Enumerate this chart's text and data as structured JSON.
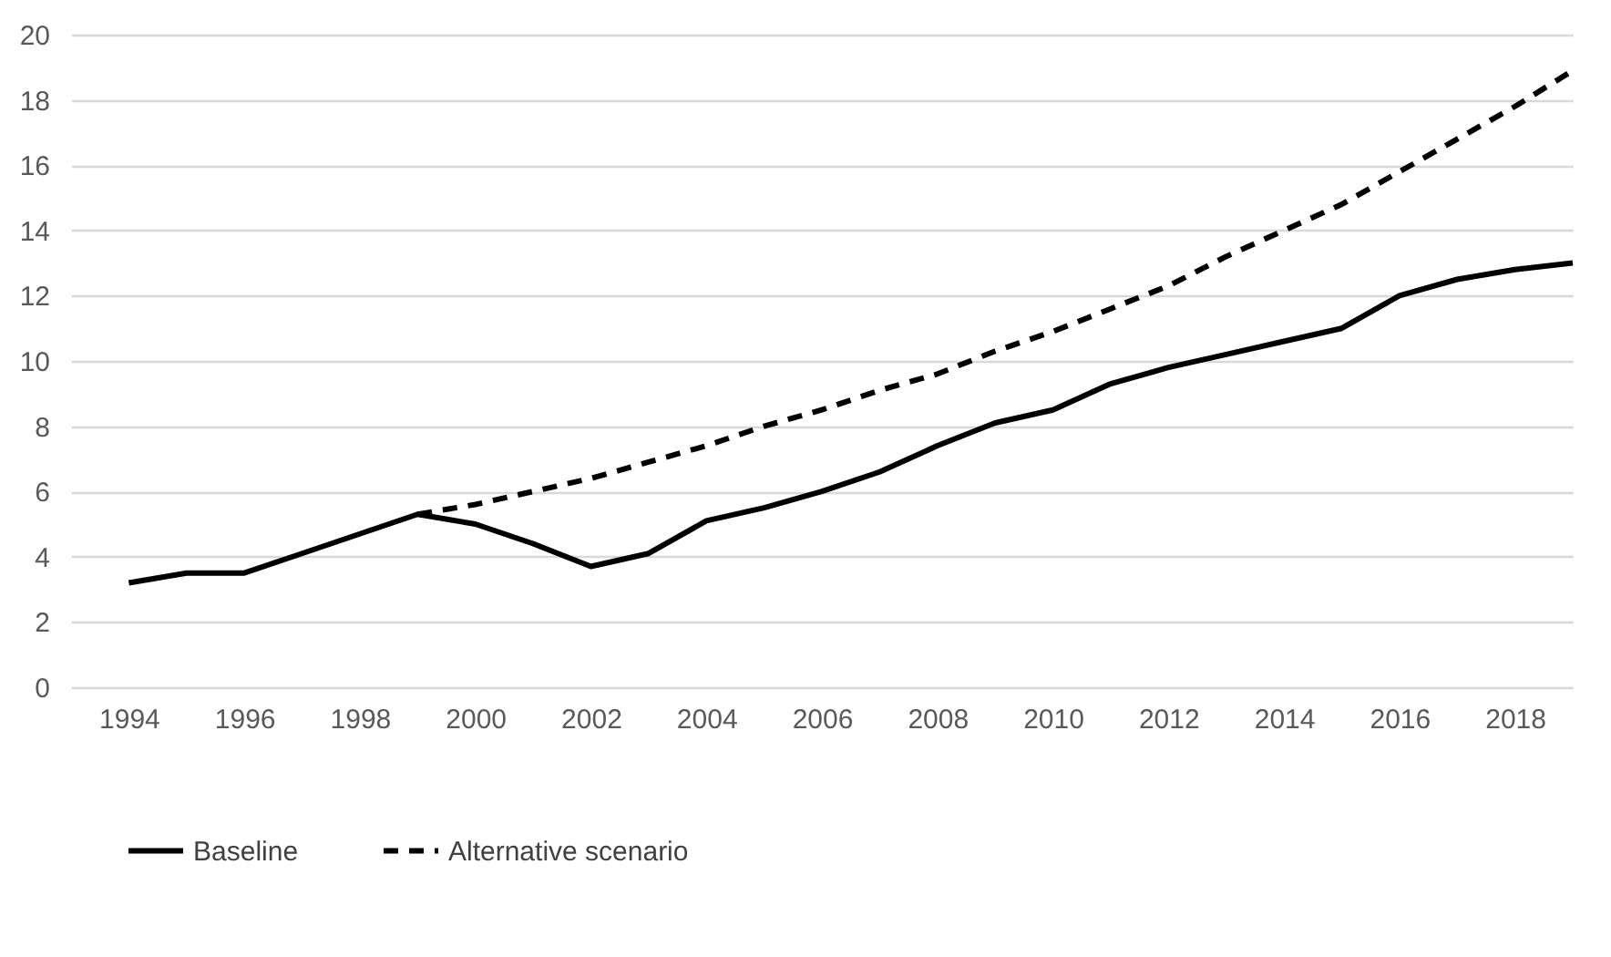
{
  "chart_data": {
    "type": "line",
    "xlim": [
      1993,
      2019
    ],
    "xticks": [
      1994,
      1996,
      1998,
      2000,
      2002,
      2004,
      2006,
      2008,
      2010,
      2012,
      2014,
      2016,
      2018
    ],
    "ylim": [
      0,
      20
    ],
    "yticks": [
      0,
      2,
      4,
      6,
      8,
      10,
      12,
      14,
      16,
      18,
      20
    ],
    "grid": "y",
    "legend": "bottom",
    "marker": "none",
    "series": [
      {
        "name": "Baseline",
        "color": "#000000",
        "line_style": "solid",
        "x": [
          1994,
          1995,
          1996,
          1997,
          1998,
          1999,
          2000,
          2001,
          2002,
          2003,
          2004,
          2005,
          2006,
          2007,
          2008,
          2009,
          2010,
          2011,
          2012,
          2013,
          2014,
          2015,
          2016,
          2017,
          2018,
          2019
        ],
        "values": [
          3.2,
          3.5,
          3.5,
          4.1,
          4.7,
          5.3,
          5.0,
          4.4,
          3.7,
          4.1,
          5.1,
          5.5,
          6.0,
          6.6,
          7.4,
          8.1,
          8.5,
          9.3,
          9.8,
          10.2,
          10.6,
          11.0,
          12.0,
          12.5,
          12.8,
          13.0
        ]
      },
      {
        "name": "Alternative scenario",
        "color": "#000000",
        "line_style": "dashed",
        "x": [
          1999,
          2000,
          2001,
          2002,
          2003,
          2004,
          2005,
          2006,
          2007,
          2008,
          2009,
          2010,
          2011,
          2012,
          2013,
          2014,
          2015,
          2016,
          2017,
          2018,
          2019
        ],
        "values": [
          5.3,
          5.6,
          6.0,
          6.4,
          6.9,
          7.4,
          8.0,
          8.5,
          9.1,
          9.6,
          10.3,
          10.9,
          11.6,
          12.3,
          13.2,
          14.0,
          14.8,
          15.8,
          16.8,
          17.8,
          18.9
        ]
      }
    ]
  }
}
